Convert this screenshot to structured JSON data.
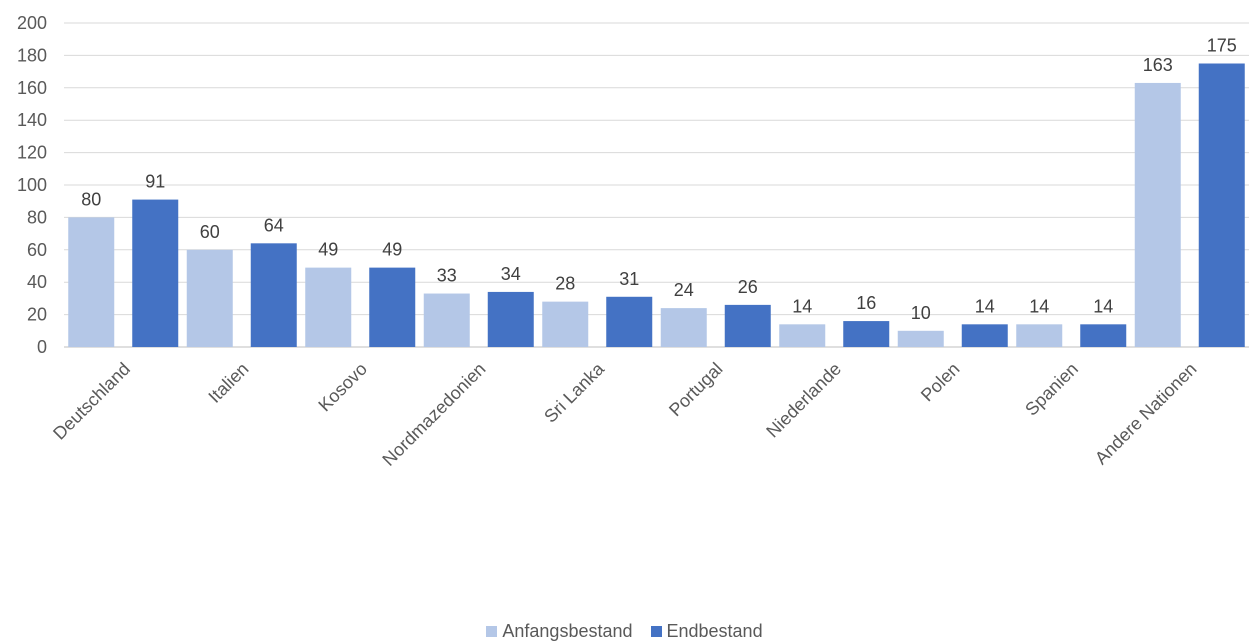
{
  "chart_data": {
    "type": "bar",
    "categories": [
      "Deutschland",
      "Italien",
      "Kosovo",
      "Nordmazedonien",
      "Sri Lanka",
      "Portugal",
      "Niederlande",
      "Polen",
      "Spanien",
      "Andere Nationen"
    ],
    "series": [
      {
        "name": "Anfangsbestand",
        "color": "#b4c7e7",
        "values": [
          80,
          60,
          49,
          33,
          28,
          24,
          14,
          10,
          14,
          163
        ]
      },
      {
        "name": "Endbestand",
        "color": "#4472c4",
        "values": [
          91,
          64,
          49,
          34,
          31,
          26,
          16,
          14,
          14,
          175
        ]
      }
    ],
    "ylim": [
      0,
      200
    ],
    "yticks": [
      0,
      20,
      40,
      60,
      80,
      100,
      120,
      140,
      160,
      180,
      200
    ],
    "grid": true,
    "legend": "bottom",
    "data_labels": true
  }
}
